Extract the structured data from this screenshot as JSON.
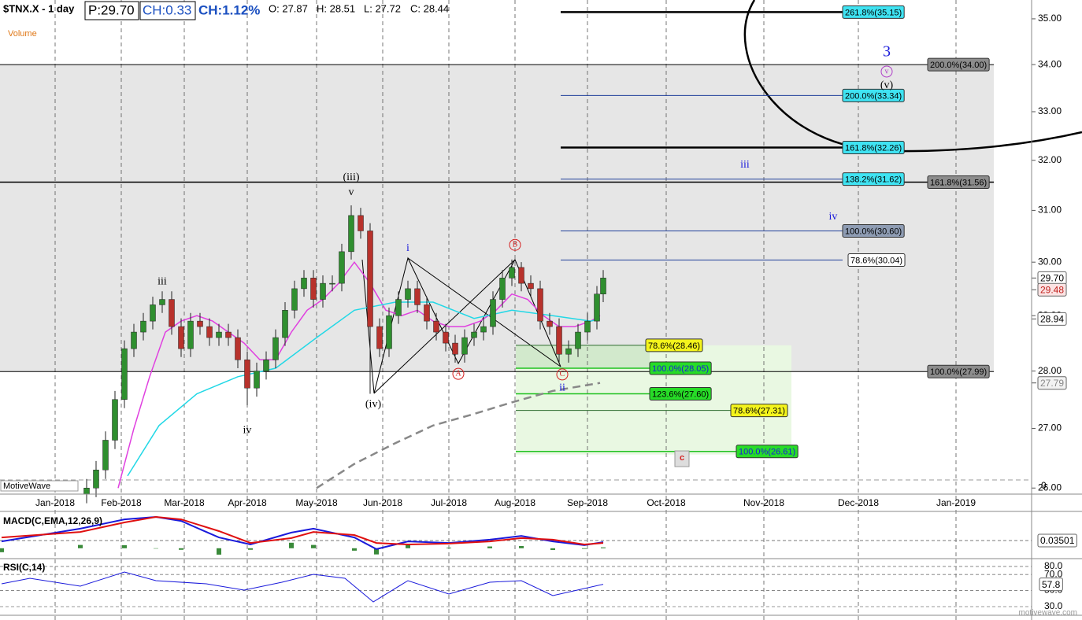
{
  "header": {
    "price": "P:29.70",
    "change": "CH:0.33",
    "change_pct": "CH:1.12%",
    "open": "O: 27.87",
    "high": "H: 28.51",
    "low": "L: 27.72",
    "close": "C: 28.44",
    "volume": "Volume",
    "brand": "MotiveWave",
    "watermark": "motivewave.com"
  },
  "chart_data": [
    {
      "type": "candlestick",
      "title": "$TNX.X - 1 day",
      "x": [
        10,
        13,
        16,
        19,
        22,
        25,
        28,
        31,
        34,
        37,
        40,
        43,
        46,
        49,
        52,
        55,
        58,
        61,
        64,
        67,
        70,
        73,
        76,
        79,
        82,
        85,
        88,
        91,
        94,
        97,
        100,
        103,
        106,
        109,
        112,
        115,
        118,
        121,
        124,
        127,
        130,
        133,
        136,
        139,
        142,
        145,
        148,
        151,
        154,
        157,
        160,
        163,
        166,
        169,
        172,
        174
      ],
      "open": [
        25.9,
        26.0,
        26.3,
        26.8,
        27.5,
        28.4,
        28.7,
        28.9,
        29.2,
        29.3,
        28.8,
        28.4,
        28.9,
        28.8,
        28.6,
        28.7,
        28.6,
        28.2,
        27.7,
        28.0,
        28.2,
        28.6,
        29.1,
        29.5,
        29.7,
        29.3,
        29.6,
        29.6,
        30.2,
        30.9,
        30.6,
        28.8,
        28.4,
        29.0,
        29.3,
        29.5,
        29.2,
        28.9,
        28.7,
        28.5,
        28.3,
        28.6,
        28.7,
        28.8,
        29.3,
        29.7,
        29.9,
        29.6,
        29.5,
        28.9,
        28.8,
        28.3,
        28.4,
        28.7,
        28.9,
        29.4
      ],
      "high": [
        26.15,
        26.45,
        26.95,
        27.65,
        28.55,
        28.85,
        29.05,
        29.35,
        29.45,
        29.45,
        28.95,
        29.05,
        29.05,
        28.95,
        28.85,
        28.85,
        28.75,
        28.35,
        28.15,
        28.35,
        28.75,
        29.25,
        29.65,
        29.85,
        29.85,
        29.75,
        29.75,
        30.35,
        31.1,
        31.05,
        30.75,
        28.95,
        29.15,
        29.45,
        29.65,
        29.65,
        29.35,
        29.05,
        28.85,
        28.65,
        28.75,
        28.85,
        28.95,
        29.45,
        29.85,
        30.05,
        30.0,
        29.75,
        29.65,
        29.05,
        28.95,
        28.55,
        28.85,
        29.05,
        29.55,
        29.85
      ],
      "low": [
        25.75,
        25.85,
        26.15,
        26.65,
        27.35,
        28.25,
        28.55,
        28.75,
        29.05,
        28.65,
        28.25,
        28.25,
        28.65,
        28.45,
        28.45,
        28.45,
        28.05,
        27.4,
        27.55,
        27.85,
        28.05,
        28.45,
        28.95,
        29.35,
        29.15,
        29.15,
        29.45,
        29.45,
        30.05,
        30.45,
        27.6,
        28.25,
        28.25,
        28.85,
        29.15,
        29.05,
        28.75,
        28.55,
        28.35,
        28.15,
        28.15,
        28.45,
        28.55,
        28.65,
        29.15,
        29.55,
        29.45,
        29.35,
        28.75,
        28.65,
        28.15,
        28.15,
        28.25,
        28.55,
        28.75,
        29.25
      ],
      "close": [
        26.0,
        26.3,
        26.8,
        27.5,
        28.4,
        28.7,
        28.9,
        29.2,
        29.3,
        28.8,
        28.4,
        28.9,
        28.8,
        28.6,
        28.7,
        28.6,
        28.2,
        27.7,
        28.0,
        28.2,
        28.6,
        29.1,
        29.5,
        29.7,
        29.3,
        29.6,
        29.6,
        30.2,
        30.9,
        30.6,
        28.8,
        28.4,
        29.0,
        29.3,
        29.5,
        29.2,
        28.9,
        28.7,
        28.5,
        28.3,
        28.6,
        28.7,
        28.8,
        29.3,
        29.7,
        29.9,
        29.6,
        29.5,
        28.9,
        28.8,
        28.3,
        28.4,
        28.7,
        28.9,
        29.4,
        29.7
      ],
      "color_up": "#2f8f2f",
      "color_down": "#b8322c",
      "overlays": [
        {
          "color": "#e040e0",
          "dash": false,
          "x": [
            20,
            25,
            30,
            35,
            40,
            45,
            50,
            55,
            60,
            65,
            70,
            75,
            80,
            85,
            90,
            95,
            100,
            105,
            110,
            115,
            120,
            125,
            130,
            135,
            140,
            145,
            150,
            155,
            160,
            165,
            170,
            173
          ],
          "values": [
            26.0,
            27.0,
            27.9,
            28.7,
            28.9,
            29.0,
            28.9,
            28.7,
            28.5,
            28.2,
            28.2,
            28.7,
            29.1,
            29.3,
            29.6,
            30.0,
            29.6,
            29.1,
            29.0,
            29.1,
            28.9,
            28.8,
            28.8,
            28.9,
            29.1,
            29.4,
            29.3,
            29.0,
            28.8,
            28.8,
            28.9,
            29.0
          ]
        },
        {
          "color": "#22d8e6",
          "dash": false,
          "x": [
            23,
            33,
            45,
            58,
            70,
            83,
            95,
            108,
            120,
            133,
            145,
            158,
            170,
            173
          ],
          "values": [
            26.2,
            27.05,
            27.6,
            27.9,
            28.05,
            28.6,
            29.1,
            29.25,
            29.25,
            28.95,
            29.1,
            29.0,
            28.9,
            28.94
          ]
        },
        {
          "color": "#888888",
          "dash": true,
          "x": [
            83,
            95,
            108,
            120,
            133,
            145,
            158,
            173
          ],
          "values": [
            26.0,
            26.4,
            26.75,
            27.05,
            27.25,
            27.45,
            27.65,
            27.79
          ]
        }
      ],
      "xlim": [
        -17.5,
        310
      ],
      "xticks": [
        {
          "value": 0,
          "label": "Jan-2018"
        },
        {
          "value": 21,
          "label": "Feb-2018"
        },
        {
          "value": 41,
          "label": "Mar-2018"
        },
        {
          "value": 61,
          "label": "Apr-2018"
        },
        {
          "value": 83,
          "label": "May-2018"
        },
        {
          "value": 104,
          "label": "Jun-2018"
        },
        {
          "value": 125,
          "label": "Jul-2018"
        },
        {
          "value": 146,
          "label": "Aug-2018"
        },
        {
          "value": 169,
          "label": "Sep-2018"
        },
        {
          "value": 194,
          "label": "Oct-2018"
        },
        {
          "value": 225,
          "label": "Nov-2018"
        },
        {
          "value": 255,
          "label": "Dec-2018"
        },
        {
          "value": 286,
          "label": "Jan-2019"
        }
      ],
      "ylim": [
        25.9,
        35.42
      ],
      "log_scale": true,
      "yticks": [
        {
          "value": 26,
          "label": "26.00"
        },
        {
          "value": 27,
          "label": "27.00"
        },
        {
          "value": 28,
          "label": "28.00"
        },
        {
          "value": 29,
          "label": "29.00"
        },
        {
          "value": 30,
          "label": "30.00"
        },
        {
          "value": 31,
          "label": "31.00"
        },
        {
          "value": 32,
          "label": "32.00"
        },
        {
          "value": 33,
          "label": "33.00"
        },
        {
          "value": 34,
          "label": "34.00"
        },
        {
          "value": 35,
          "label": "35.00"
        }
      ],
      "volume_tick": 0,
      "price_labels": [
        {
          "value": 29.7,
          "label": "29.70",
          "fill": "#ffffff",
          "text_color": "#000000"
        },
        {
          "value": 29.48,
          "label": "29.48",
          "fill": "#fbe3e3",
          "text_color": "#c0201c"
        },
        {
          "value": 28.94,
          "label": "28.94",
          "fill": "#ffffff",
          "text_color": "#000000"
        },
        {
          "value": 27.79,
          "label": "27.79",
          "fill": "#f2f2f2",
          "text_color": "#888888"
        }
      ],
      "levels": [
        {
          "label": "261.8%(35.15)",
          "value": 35.15,
          "box_color": "#3fe3f2",
          "text_color": "#000000",
          "line_color": "#000000",
          "line_width": 2.5
        },
        {
          "label": "200.0%(34.00)",
          "value": 34,
          "box_color": "#8c8c8c",
          "text_color": "#000000",
          "line_color": "#000000",
          "line_width": 1
        },
        {
          "label": "200.0%(33.34)",
          "value": 33.34,
          "box_color": "#3fe3f2",
          "text_color": "#000000",
          "line_color": "#1f3f9a",
          "line_width": 1
        },
        {
          "label": "161.8%(32.26)",
          "value": 32.26,
          "box_color": "#3fe3f2",
          "text_color": "#000000",
          "line_color": "#000000",
          "line_width": 2.5
        },
        {
          "label": "138.2%(31.62)",
          "value": 31.62,
          "box_color": "#3fe3f2",
          "text_color": "#000000",
          "line_color": "#1f3f9a",
          "line_width": 1
        },
        {
          "label": "161.8%(31.56)",
          "value": 31.56,
          "box_color": "#8c8c8c",
          "text_color": "#000000",
          "line_color": "#000000",
          "line_width": 1.5
        },
        {
          "label": "100.0%(30.60)",
          "value": 30.6,
          "box_color": "#8e9cb3",
          "text_color": "#000000",
          "line_color": "#1f3f9a",
          "line_width": 1
        },
        {
          "label": "78.6%(30.04)",
          "value": 30.04,
          "box_color": "#ffffff",
          "text_color": "#000000",
          "line_color": "#1f3f9a",
          "line_width": 1
        },
        {
          "label": "100.0%(27.99)",
          "value": 27.99,
          "box_color": "#8c8c8c",
          "text_color": "#000000",
          "line_color": "#000000",
          "line_width": 1
        },
        {
          "label": "78.6%(28.46)",
          "value": 28.46,
          "box_color": "#f4f41c",
          "text_color": "#000000",
          "line_color": "#2d6b2d",
          "line_width": 1
        },
        {
          "label": "100.0%(28.05)",
          "value": 28.05,
          "box_color": "#27dc27",
          "text_color": "#1a1adb",
          "line_color": "#1fc21f",
          "line_width": 1.5
        },
        {
          "label": "123.6%(27.60)",
          "value": 27.6,
          "box_color": "#27dc27",
          "text_color": "#000000",
          "line_color": "#1fc21f",
          "line_width": 1.5
        },
        {
          "label": "78.6%(27.31)",
          "value": 27.31,
          "box_color": "#f4f41c",
          "text_color": "#000000",
          "line_color": "#2d6b2d",
          "line_width": 1
        },
        {
          "label": "100.0%(26.61)",
          "value": 26.61,
          "box_color": "#27dc27",
          "text_color": "#1a1adb",
          "line_color": "#1fc21f",
          "line_width": 1.5
        }
      ],
      "wave_labels": [
        {
          "label": "3",
          "x": 264,
          "y": 34.26,
          "color": "#1a1adb",
          "style": "large"
        },
        {
          "label": "v",
          "x": 264,
          "y": 33.85,
          "color": "#b040c8",
          "style": "circled"
        },
        {
          "label": "(v)",
          "x": 264,
          "y": 33.55,
          "color": "#000000",
          "style": "plain"
        },
        {
          "label": "iii",
          "x": 219,
          "y": 31.9,
          "color": "#1a1adb",
          "style": "plain"
        },
        {
          "label": "iv",
          "x": 247,
          "y": 30.87,
          "color": "#1a1adb",
          "style": "plain"
        },
        {
          "label": "(iii)",
          "x": 94,
          "y": 31.65,
          "color": "#000000",
          "style": "plain"
        },
        {
          "label": "v",
          "x": 94,
          "y": 31.35,
          "color": "#000000",
          "style": "plain"
        },
        {
          "label": "iii",
          "x": 34,
          "y": 29.63,
          "color": "#000000",
          "style": "plain"
        },
        {
          "label": "iv",
          "x": 61,
          "y": 26.96,
          "color": "#000000",
          "style": "plain"
        },
        {
          "label": "(iv)",
          "x": 101,
          "y": 27.41,
          "color": "#000000",
          "style": "plain"
        },
        {
          "label": "i",
          "x": 112,
          "y": 30.26,
          "color": "#1a1adb",
          "style": "plain"
        },
        {
          "label": "B",
          "x": 146,
          "y": 30.33,
          "color": "#d42020",
          "style": "circled"
        },
        {
          "label": "A",
          "x": 128,
          "y": 27.95,
          "color": "#d42020",
          "style": "circled"
        },
        {
          "label": "C",
          "x": 161,
          "y": 27.94,
          "color": "#d42020",
          "style": "circled"
        },
        {
          "label": "ii",
          "x": 161,
          "y": 27.7,
          "color": "#1a1adb",
          "style": "plain"
        },
        {
          "label": "c",
          "x": 199,
          "y": 26.5,
          "color": "#d42020",
          "style": "boxed"
        }
      ]
    },
    {
      "type": "macd",
      "title": "MACD(C,EMA,12,26,9)",
      "x": [
        -17,
        8,
        22,
        32,
        40,
        52,
        62,
        75,
        82,
        95,
        102,
        112,
        125,
        138,
        148,
        158,
        168,
        174
      ],
      "series": [
        {
          "color": "#1a1adb",
          "values": [
            0.031,
            0.089,
            0.131,
            0.142,
            0.124,
            0.049,
            0.017,
            0.071,
            0.089,
            0.049,
            -0.004,
            0.031,
            0.024,
            0.039,
            0.056,
            0.031,
            0.014,
            0.028
          ]
        },
        {
          "color": "#e01010",
          "values": [
            0.049,
            0.074,
            0.117,
            0.142,
            0.131,
            0.078,
            0.024,
            0.046,
            0.074,
            0.06,
            0.024,
            0.017,
            0.021,
            0.031,
            0.046,
            0.039,
            0.017,
            0.024
          ]
        }
      ],
      "histogram": {
        "color": "#3a8a3a",
        "values": [
          -0.018,
          0.015,
          0.014,
          0,
          -0.007,
          -0.029,
          -0.007,
          0.025,
          0.015,
          -0.011,
          -0.028,
          0.014,
          0.003,
          0.008,
          0.01,
          -0.008,
          -0.003,
          0.004
        ]
      },
      "xlim": [
        -17.5,
        310
      ],
      "ylim": [
        -0.04,
        0.16
      ],
      "current_value": 0.03501
    },
    {
      "type": "line",
      "title": "RSI(C,14)",
      "x": [
        -17,
        -8,
        8,
        22,
        32,
        48,
        60,
        72,
        82,
        92,
        101,
        112,
        125,
        138,
        148,
        158,
        168,
        174
      ],
      "values": [
        58.4,
        65.3,
        55.5,
        73.1,
        62.3,
        58.4,
        50.6,
        60.4,
        70.2,
        65.3,
        35.9,
        62.3,
        45.7,
        60.4,
        62.3,
        43.7,
        52.5,
        57.8
      ],
      "color": "#1a1adb",
      "xlim": [
        -17.5,
        310
      ],
      "ylim": [
        19.2,
        87.8
      ],
      "yticks": [
        {
          "value": 80,
          "label": "80.0"
        },
        {
          "value": 70,
          "label": "70.0"
        },
        {
          "value": 50,
          "label": "50.0"
        },
        {
          "value": 30,
          "label": "30.0"
        }
      ],
      "current_value": 57.8
    }
  ]
}
